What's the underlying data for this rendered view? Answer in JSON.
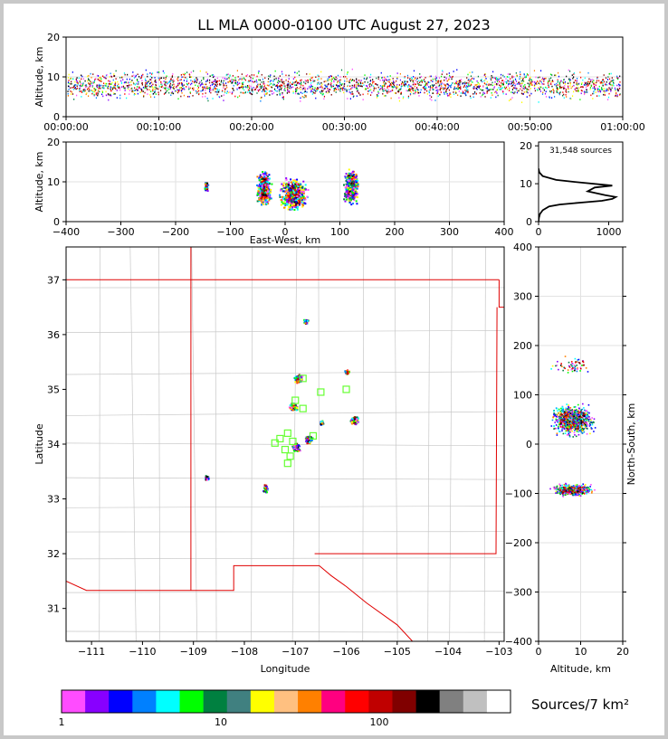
{
  "chart_data": [
    {
      "id": "time-height",
      "type": "scatter",
      "title": "LL MLA 0000-0100 UTC August 27, 2023",
      "xlabel": "",
      "ylabel": "Altitude, km",
      "xticks": [
        "00:00:00",
        "00:10:00",
        "00:20:00",
        "00:30:00",
        "00:40:00",
        "00:50:00",
        "01:00:00"
      ],
      "xlim": [
        0,
        60
      ],
      "yticks": [
        0,
        10,
        20
      ],
      "ylim": [
        0,
        20
      ],
      "grid": true
    },
    {
      "id": "ew-height",
      "type": "scatter",
      "xlabel": "East-West, km",
      "ylabel": "Altitude, km",
      "xticks": [
        -400,
        -300,
        -200,
        -100,
        0,
        100,
        200,
        300,
        400
      ],
      "xlim": [
        -400,
        400
      ],
      "yticks": [
        0,
        10,
        20
      ],
      "ylim": [
        0,
        20
      ],
      "grid": true,
      "clusters": [
        {
          "x": -145,
          "alt": 9
        },
        {
          "x": -40,
          "alt": 8.5
        },
        {
          "x": 15,
          "alt": 7
        },
        {
          "x": 120,
          "alt": 9
        }
      ]
    },
    {
      "id": "altitude-histogram",
      "type": "line",
      "annotation": "31,548 sources",
      "xticks": [
        0,
        1000
      ],
      "xlim": [
        0,
        1200
      ],
      "yticks": [
        0,
        10,
        20
      ],
      "ylim": [
        0,
        21
      ],
      "x": [
        0,
        5,
        20,
        60,
        150,
        300,
        600,
        900,
        1050,
        1100,
        950,
        700,
        800,
        1050,
        500,
        250,
        60,
        10,
        0
      ],
      "y": [
        0,
        1,
        2,
        3,
        4,
        4.5,
        5,
        5.5,
        6,
        6.5,
        7,
        8,
        9,
        9.5,
        10.5,
        11,
        12,
        13,
        14
      ]
    },
    {
      "id": "plan-view",
      "type": "scatter",
      "xlabel": "Longitude",
      "ylabel": "Latitude",
      "xticks": [
        -111,
        -110,
        -109,
        -108,
        -107,
        -106,
        -105,
        -104,
        -103
      ],
      "xlim": [
        -111.5,
        -102.9
      ],
      "yticks": [
        31,
        32,
        33,
        34,
        35,
        36,
        37
      ],
      "ylim": [
        30.4,
        37.6
      ],
      "clusters": [
        {
          "lon": -106.95,
          "lat": 35.2
        },
        {
          "lon": -107.05,
          "lat": 34.7
        },
        {
          "lon": -106.75,
          "lat": 34.1
        },
        {
          "lon": -107.0,
          "lat": 33.95
        },
        {
          "lon": -105.85,
          "lat": 34.45
        },
        {
          "lon": -106.0,
          "lat": 35.33
        },
        {
          "lon": -107.6,
          "lat": 33.2
        },
        {
          "lon": -108.75,
          "lat": 33.4
        },
        {
          "lon": -106.8,
          "lat": 36.25
        },
        {
          "lon": -106.5,
          "lat": 34.4
        }
      ],
      "stations": [
        {
          "lon": -106.85,
          "lat": 35.2
        },
        {
          "lon": -106.5,
          "lat": 34.95
        },
        {
          "lon": -106.0,
          "lat": 35.0
        },
        {
          "lon": -107.0,
          "lat": 34.8
        },
        {
          "lon": -106.85,
          "lat": 34.65
        },
        {
          "lon": -106.65,
          "lat": 34.15
        },
        {
          "lon": -107.15,
          "lat": 34.2
        },
        {
          "lon": -107.3,
          "lat": 34.1
        },
        {
          "lon": -107.4,
          "lat": 34.02
        },
        {
          "lon": -107.05,
          "lat": 34.05
        },
        {
          "lon": -107.2,
          "lat": 33.9
        },
        {
          "lon": -107.1,
          "lat": 33.78
        },
        {
          "lon": -107.15,
          "lat": 33.65
        }
      ]
    },
    {
      "id": "ns-altitude",
      "type": "scatter",
      "xlabel": "Altitude, km",
      "ylabel": "North-South, km",
      "xticks": [
        0,
        10,
        20
      ],
      "xlim": [
        0,
        20
      ],
      "yticks": [
        -400,
        -300,
        -200,
        -100,
        0,
        100,
        200,
        300,
        400
      ],
      "ylim": [
        -400,
        400
      ],
      "grid": true
    },
    {
      "id": "colorbar",
      "type": "heatmap",
      "label": "Sources/7 km²",
      "ticks": [
        1,
        10,
        100
      ],
      "colors": [
        "#ff4cff",
        "#8800ff",
        "#0000ff",
        "#0080ff",
        "#00ffff",
        "#00ff00",
        "#008040",
        "#408080",
        "#ffff00",
        "#ffc080",
        "#ff8000",
        "#ff0080",
        "#ff0000",
        "#c00000",
        "#800000",
        "#000000",
        "#808080",
        "#c0c0c0",
        "#ffffff"
      ]
    }
  ]
}
